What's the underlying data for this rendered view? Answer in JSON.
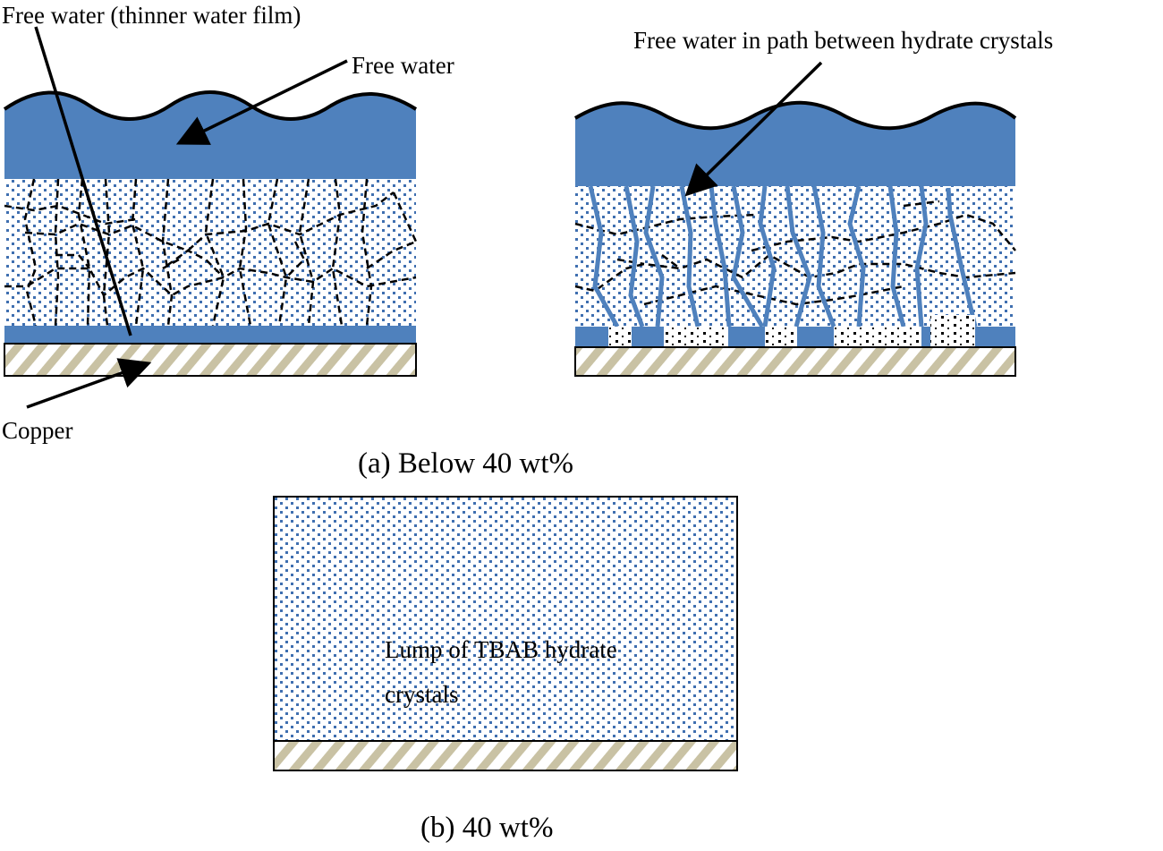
{
  "labels": {
    "free_water_thin_film": "Free water (thinner water film)",
    "free_water": "Free water",
    "free_water_path": "Free water in path between hydrate crystals",
    "copper": "Copper",
    "caption_a": "(a) Below 40 wt%",
    "lump_line1": "Lump of TBAB hydrate",
    "lump_line2": "crystals",
    "caption_b": "(b) 40 wt%"
  },
  "colors": {
    "water_blue": "#4f81bd",
    "dot_blue": "#3f6fb0",
    "copper_beige": "#c9c2a4",
    "outline": "#000000",
    "hydrate_dot": "#000000"
  }
}
